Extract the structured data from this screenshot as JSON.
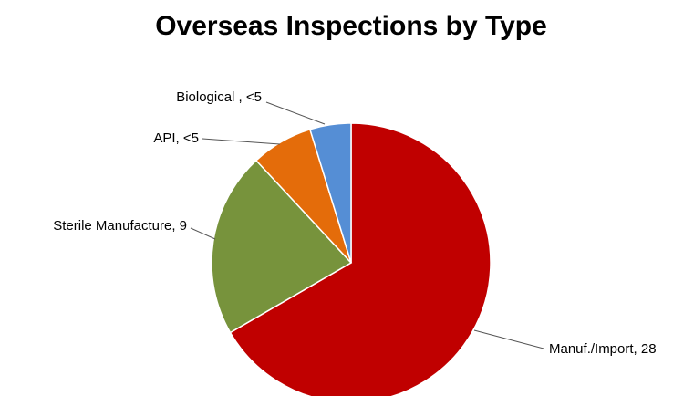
{
  "chart_data": {
    "type": "pie",
    "title": "Overseas Inspections by Type",
    "labels": [
      "Manuf./Import, 28",
      "Sterile Manufacture, 9",
      "API, <5",
      "Biological , <5"
    ],
    "values": [
      28,
      9,
      3,
      2
    ],
    "value_labels": [
      "28",
      "9",
      "<5",
      "<5"
    ],
    "colors": [
      "#c00000",
      "#77933c",
      "#e46c0a",
      "#558ed5"
    ],
    "start_angle": 0,
    "direction": "clockwise"
  }
}
